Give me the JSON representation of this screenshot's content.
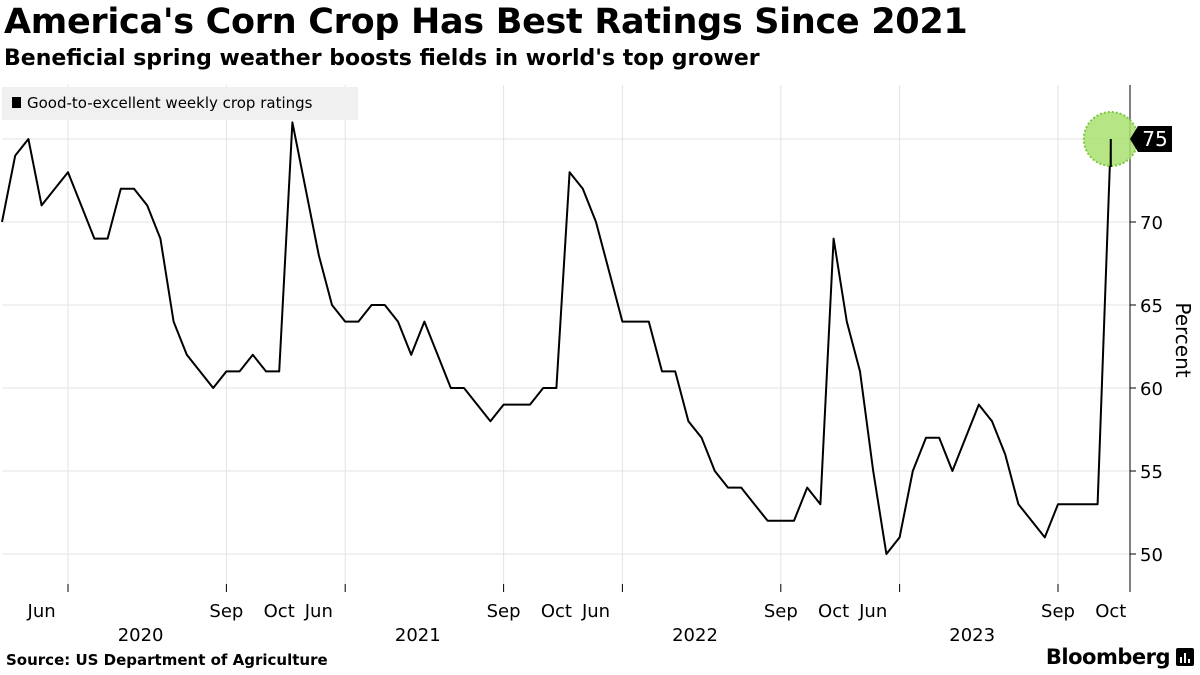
{
  "header": {
    "title": "America's Corn Crop Has Best Ratings Since 2021",
    "subtitle": "Beneficial spring weather boosts fields in world's top grower"
  },
  "footer": {
    "source": "Source: US Department of Agriculture",
    "brand": "Bloomberg"
  },
  "colors": {
    "line": "#000000",
    "grid": "#e3e3e3",
    "highlight": "#a8e070",
    "callout_bg": "#000000",
    "legend_bg": "#f0f0f0"
  },
  "chart_data": {
    "type": "line",
    "title": "America's Corn Crop Has Best Ratings Since 2021",
    "subtitle": "Beneficial spring weather boosts fields in world's top grower",
    "ylabel": "Percent",
    "ylim": [
      47.5,
      78.5
    ],
    "yticks": [
      50,
      55,
      60,
      65,
      70,
      75
    ],
    "legend": [
      "Good-to-excellent weekly crop ratings"
    ],
    "legend_position": "top-left",
    "callout": {
      "label": "75",
      "value": 75
    },
    "x_month_ticks": [
      {
        "label": "Jun",
        "week": 3
      },
      {
        "label": "Sep",
        "week": 17
      },
      {
        "label": "Oct",
        "week": 21
      },
      {
        "label": "Jun",
        "week": 24
      },
      {
        "label": "Sep",
        "week": 38
      },
      {
        "label": "Oct",
        "week": 42
      },
      {
        "label": "Jun",
        "week": 45
      },
      {
        "label": "Sep",
        "week": 59
      },
      {
        "label": "Oct",
        "week": 63
      },
      {
        "label": "Jun",
        "week": 66
      },
      {
        "label": "Sep",
        "week": 80
      },
      {
        "label": "Oct",
        "week": 84
      }
    ],
    "x_year_labels": [
      {
        "label": "2020",
        "week": 10.5
      },
      {
        "label": "2021",
        "week": 31.5
      },
      {
        "label": "2022",
        "week": 52.5
      },
      {
        "label": "2023",
        "week": 73.5
      }
    ],
    "x_minor_ticks": [
      5,
      17,
      26,
      38,
      47,
      59,
      68,
      80
    ],
    "x_grid": [
      5,
      17,
      26,
      38,
      47,
      59,
      68,
      80
    ],
    "series": [
      {
        "name": "Good-to-excellent weekly crop ratings",
        "values": [
          70,
          74,
          75,
          71,
          72,
          73,
          71,
          69,
          69,
          72,
          72,
          71,
          69,
          64,
          62,
          61,
          60,
          61,
          61,
          62,
          61,
          61,
          76,
          72,
          68,
          65,
          64,
          64,
          65,
          65,
          64,
          62,
          64,
          62,
          60,
          60,
          59,
          58,
          59,
          59,
          59,
          60,
          60,
          73,
          72,
          70,
          67,
          64,
          64,
          64,
          61,
          61,
          58,
          57,
          55,
          54,
          54,
          53,
          52,
          52,
          52,
          54,
          53,
          69,
          64,
          61,
          55,
          50,
          51,
          55,
          57,
          57,
          55,
          57,
          59,
          58,
          56,
          53,
          52,
          51,
          53,
          53,
          53,
          53,
          75
        ]
      }
    ]
  }
}
